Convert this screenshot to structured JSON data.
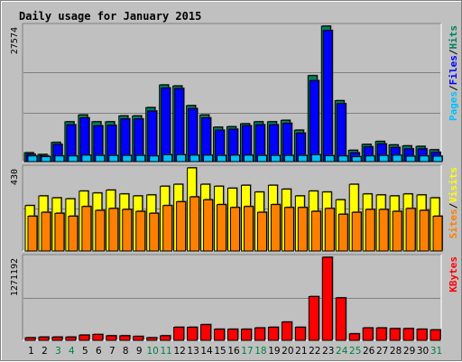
{
  "chart_data": {
    "type": "bar",
    "title": "Daily usage for January 2015",
    "colors": {
      "hits": "#00805c",
      "files": "#0000ff",
      "pages": "#00c0ff",
      "visits": "#ffff00",
      "sites": "#ff8000",
      "kbytes": "#ff0000",
      "weekend": "#008040",
      "weekday": "#000000",
      "title": "#0000ff",
      "separator": "#000000"
    },
    "categories": [
      "1",
      "2",
      "3",
      "4",
      "5",
      "6",
      "7",
      "8",
      "9",
      "10",
      "11",
      "12",
      "13",
      "14",
      "15",
      "16",
      "17",
      "18",
      "19",
      "20",
      "21",
      "22",
      "23",
      "24",
      "25",
      "26",
      "27",
      "28",
      "29",
      "30",
      "31"
    ],
    "weekend_days": [
      "3",
      "4",
      "10",
      "11",
      "17",
      "18",
      "24",
      "25",
      "31"
    ],
    "panels": [
      {
        "name": "hits_files_pages",
        "max_label": "27574",
        "ymax": 27574,
        "legend": [
          {
            "label": "Pages",
            "color": "#00c0ff"
          },
          {
            "label": "/",
            "color": "#000000"
          },
          {
            "label": "Files",
            "color": "#0000ff"
          },
          {
            "label": "/",
            "color": "#000000"
          },
          {
            "label": "Hits",
            "color": "#00805c"
          }
        ],
        "series": [
          {
            "name": "Hits",
            "values": [
              1800,
              1450,
              3900,
              8100,
              9500,
              8100,
              8100,
              9300,
              9300,
              11000,
              15600,
              15400,
              11400,
              9500,
              7000,
              7100,
              7700,
              8100,
              8100,
              8400,
              6400,
              17500,
              27574,
              12400,
              2300,
              3500,
              4100,
              3400,
              3200,
              3100,
              2400
            ]
          },
          {
            "name": "Files",
            "values": [
              1500,
              1200,
              3500,
              7500,
              8900,
              7300,
              7400,
              8700,
              8700,
              10300,
              15000,
              14900,
              10800,
              8900,
              6400,
              6600,
              7300,
              7500,
              7500,
              7800,
              5800,
              16500,
              26700,
              11800,
              1800,
              3000,
              3600,
              2900,
              2600,
              2600,
              1900
            ]
          },
          {
            "name": "Pages",
            "values": [
              1150,
              1000,
              1150,
              1150,
              1300,
              1250,
              1250,
              1250,
              1250,
              1150,
              1400,
              1400,
              1300,
              1300,
              1250,
              1300,
              1300,
              1250,
              1250,
              1250,
              1250,
              1400,
              1200,
              1150,
              1000,
              1150,
              1250,
              1300,
              1100,
              1150,
              1100
            ]
          }
        ]
      },
      {
        "name": "visits_sites",
        "max_label": "430",
        "ymax": 430,
        "legend": [
          {
            "label": "Sites",
            "color": "#ff8000"
          },
          {
            "label": "/",
            "color": "#000000"
          },
          {
            "label": "Visits",
            "color": "#ffff00"
          }
        ],
        "series": [
          {
            "name": "Visits",
            "values": [
              235,
              285,
              275,
              270,
              310,
              300,
              315,
              295,
              285,
              290,
              335,
              345,
              430,
              345,
              335,
              325,
              340,
              305,
              340,
              320,
              285,
              310,
              305,
              265,
              345,
              295,
              290,
              285,
              295,
              290,
              275
            ]
          },
          {
            "name": "Sites",
            "values": [
              180,
              200,
              195,
              180,
              230,
              210,
              220,
              215,
              205,
              195,
              235,
              255,
              280,
              265,
              240,
              225,
              230,
              200,
              240,
              225,
              225,
              205,
              220,
              190,
              200,
              215,
              215,
              205,
              220,
              210,
              180
            ]
          }
        ]
      },
      {
        "name": "kbytes",
        "max_label": "1271192",
        "ymax": 1271192,
        "legend": [
          {
            "label": "KBytes",
            "color": "#ff0000"
          }
        ],
        "series": [
          {
            "name": "KBytes",
            "values": [
              40000,
              50000,
              50000,
              50000,
              80000,
              90000,
              70000,
              70000,
              60000,
              40000,
              70000,
              200000,
              200000,
              240000,
              170000,
              170000,
              170000,
              190000,
              200000,
              280000,
              200000,
              670000,
              1271192,
              650000,
              100000,
              190000,
              190000,
              180000,
              180000,
              170000,
              160000
            ]
          }
        ]
      }
    ]
  }
}
